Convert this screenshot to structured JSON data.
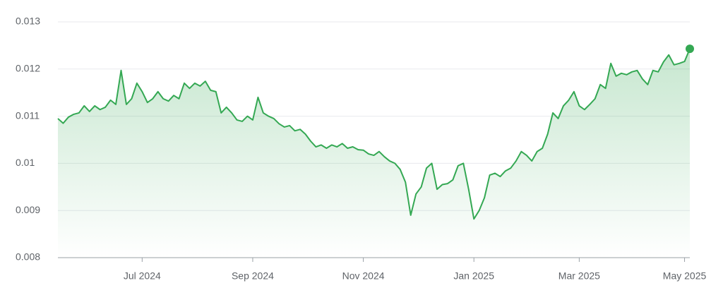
{
  "chart_data": {
    "type": "line",
    "categories": [
      null,
      null,
      null,
      null,
      null,
      null,
      null,
      null,
      null,
      null,
      null,
      null,
      null,
      null,
      null,
      null,
      "Jul 2024",
      null,
      null,
      null,
      null,
      null,
      null,
      null,
      null,
      null,
      null,
      null,
      null,
      null,
      null,
      null,
      null,
      null,
      null,
      null,
      null,
      "Sep 2024",
      null,
      null,
      null,
      null,
      null,
      null,
      null,
      null,
      null,
      null,
      null,
      null,
      null,
      null,
      null,
      null,
      null,
      null,
      null,
      null,
      "Nov 2024",
      null,
      null,
      null,
      null,
      null,
      null,
      null,
      null,
      null,
      null,
      null,
      null,
      null,
      null,
      null,
      null,
      null,
      null,
      null,
      null,
      "Jan 2025",
      null,
      null,
      null,
      null,
      null,
      null,
      null,
      null,
      null,
      null,
      null,
      null,
      null,
      null,
      null,
      null,
      null,
      null,
      null,
      "Mar 2025",
      null,
      null,
      null,
      null,
      null,
      null,
      null,
      null,
      null,
      null,
      null,
      null,
      null,
      null,
      null,
      null,
      null,
      null,
      null,
      "May 2025",
      null
    ],
    "series": [
      {
        "color": "#34a853",
        "values": [
          0.01095,
          0.01085,
          0.01098,
          0.01104,
          0.01107,
          0.01122,
          0.0111,
          0.01122,
          0.01114,
          0.01119,
          0.01134,
          0.01125,
          0.01197,
          0.01125,
          0.01137,
          0.0117,
          0.01152,
          0.01129,
          0.01137,
          0.01152,
          0.01137,
          0.01132,
          0.01144,
          0.01137,
          0.0117,
          0.01159,
          0.0117,
          0.01164,
          0.01174,
          0.01155,
          0.01152,
          0.01107,
          0.01119,
          0.01107,
          0.01092,
          0.01089,
          0.011,
          0.01092,
          0.0114,
          0.01107,
          0.011,
          0.01095,
          0.01084,
          0.01077,
          0.0108,
          0.01069,
          0.01072,
          0.01062,
          0.01047,
          0.01035,
          0.01039,
          0.01032,
          0.01039,
          0.01035,
          0.01042,
          0.01032,
          0.01035,
          0.01029,
          0.01028,
          0.0102,
          0.01017,
          0.01025,
          0.01014,
          0.01005,
          0.01,
          0.00987,
          0.0096,
          0.0089,
          0.00935,
          0.0095,
          0.0099,
          0.01,
          0.00945,
          0.00955,
          0.00957,
          0.00965,
          0.00995,
          0.01,
          0.00945,
          0.00882,
          0.009,
          0.00927,
          0.00975,
          0.00979,
          0.00972,
          0.00984,
          0.0099,
          0.01005,
          0.01025,
          0.01017,
          0.01005,
          0.01025,
          0.01032,
          0.01062,
          0.01107,
          0.01095,
          0.01122,
          0.01134,
          0.01152,
          0.01122,
          0.01114,
          0.01125,
          0.01137,
          0.01167,
          0.01159,
          0.01212,
          0.01185,
          0.01191,
          0.01188,
          0.01194,
          0.01197,
          0.01179,
          0.01167,
          0.01197,
          0.01194,
          0.01215,
          0.0123,
          0.01209,
          0.01212,
          0.01216,
          0.01243
        ]
      }
    ],
    "ylim": [
      0.008,
      0.013
    ],
    "yticks": [
      0.008,
      0.009,
      0.01,
      0.011,
      0.012,
      0.013
    ],
    "grid": true
  }
}
